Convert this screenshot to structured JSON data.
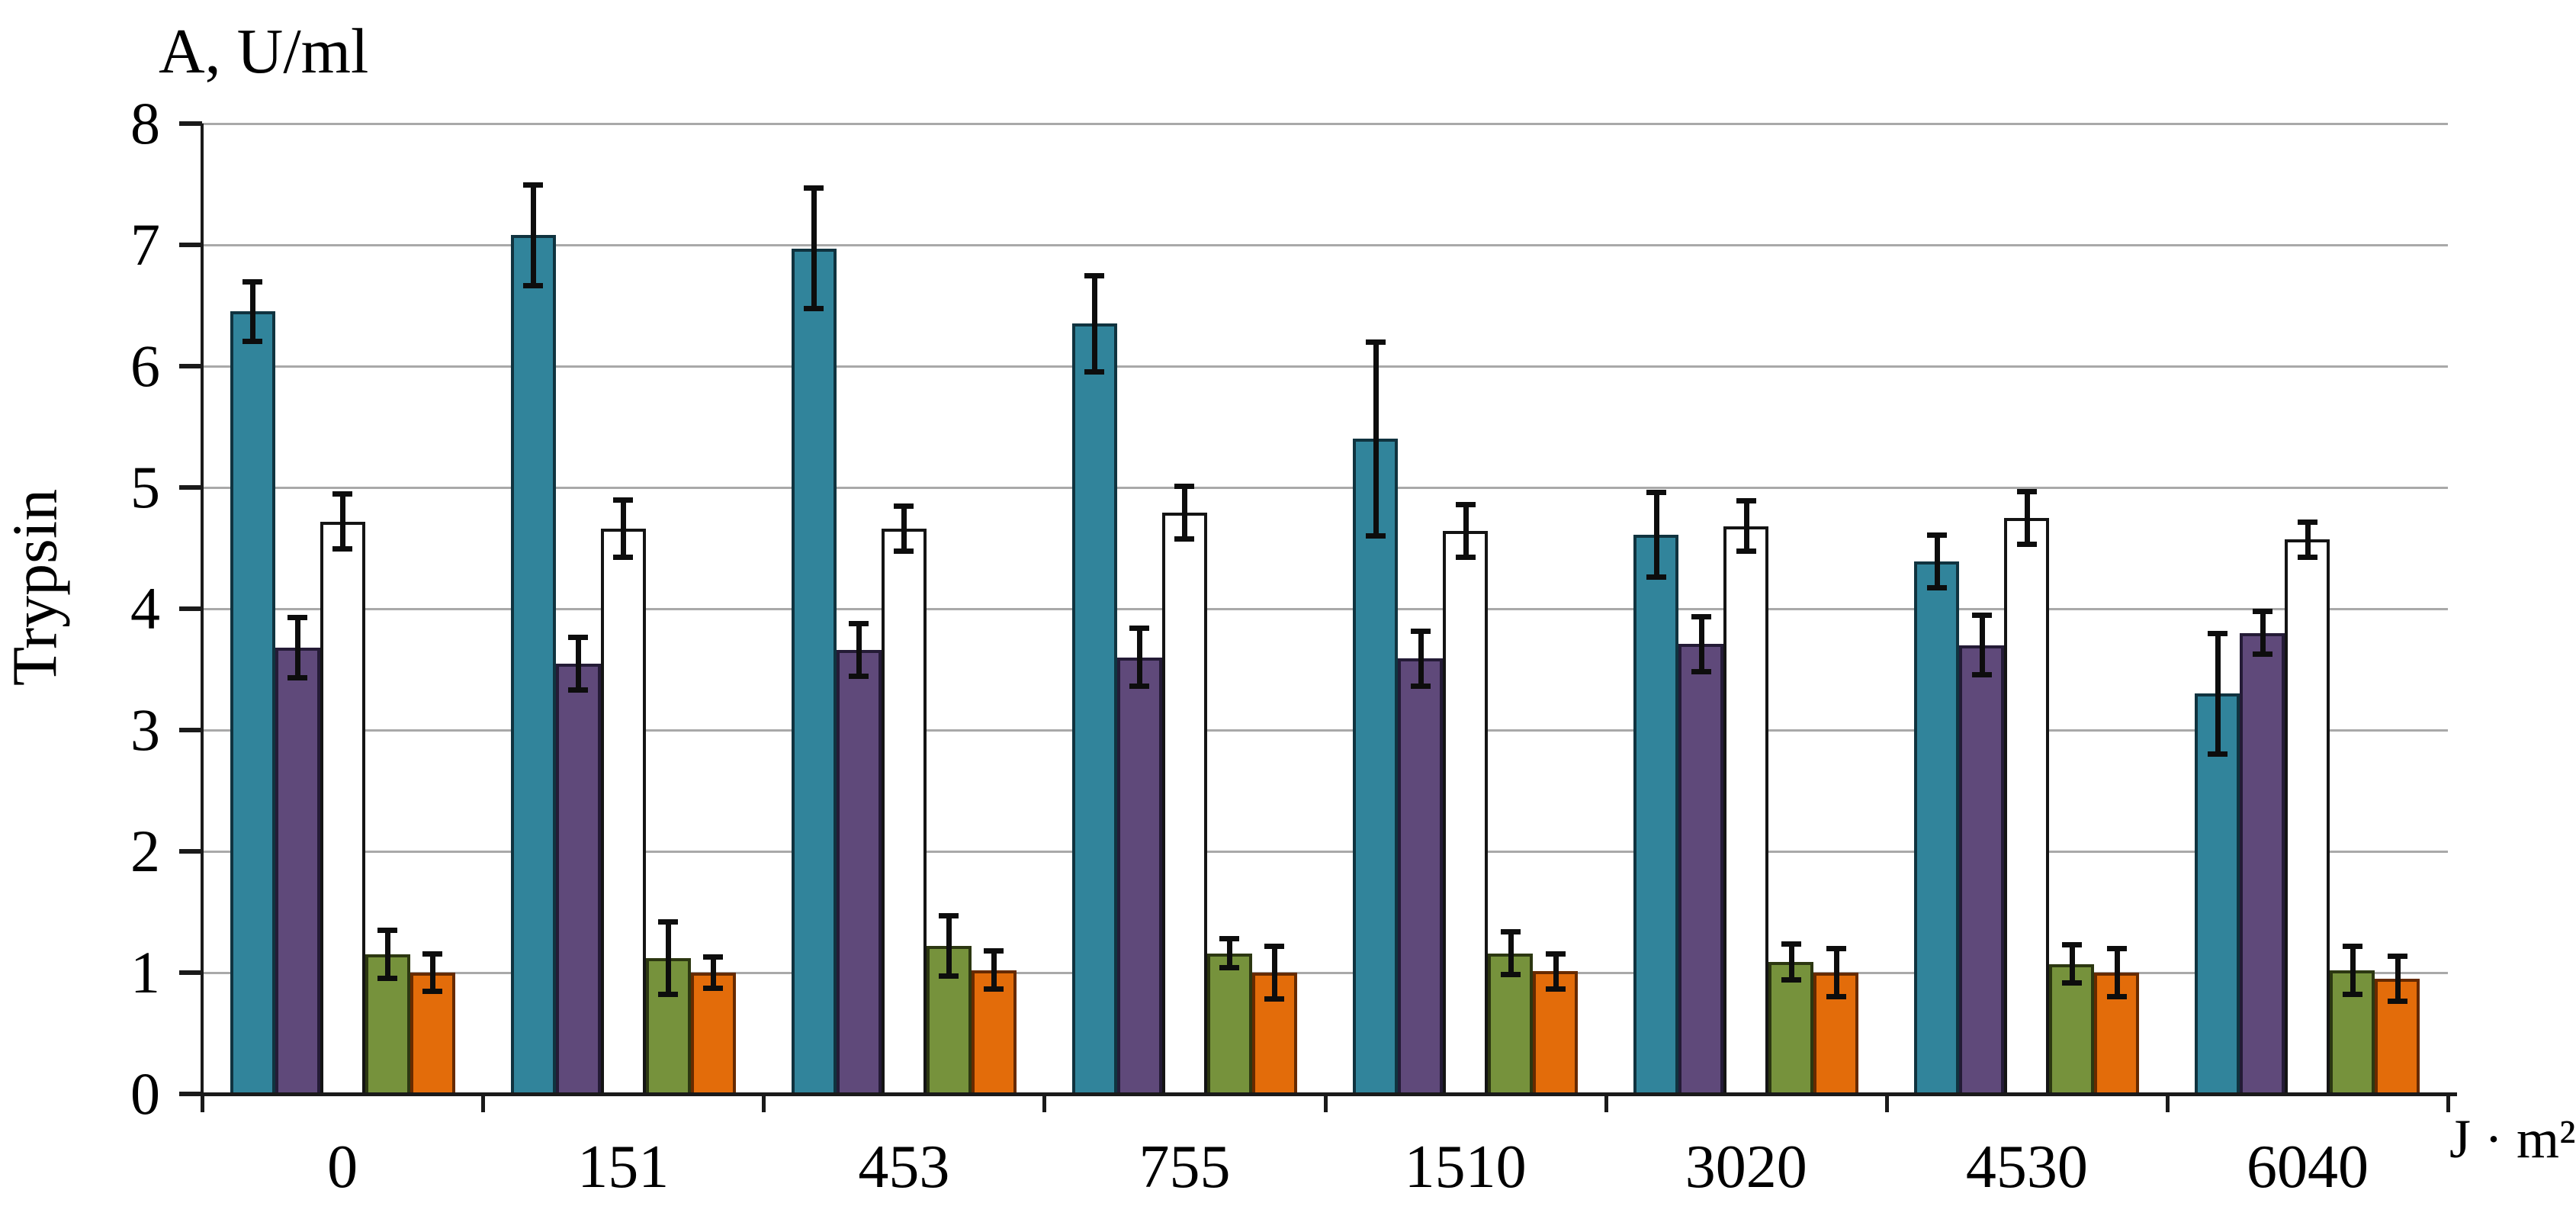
{
  "chart_data": {
    "type": "bar",
    "title": "A, U/ml",
    "ylabel": "Trypsin",
    "x_unit": "J · m²",
    "categories": [
      "0",
      "151",
      "453",
      "755",
      "1510",
      "3020",
      "4530",
      "6040"
    ],
    "ylim": [
      0,
      8
    ],
    "y_ticks": [
      0,
      1,
      2,
      3,
      4,
      5,
      6,
      7,
      8
    ],
    "grid": "horizontal",
    "legend": "none",
    "gridline_color": "#A9A9A9",
    "axis_color": "#1a1a1a",
    "error_bar_color": "#0d0d0d",
    "series": [
      {
        "name": "teal",
        "fill": "#31849B",
        "border": "#10333F",
        "values": [
          6.45,
          7.08,
          6.97,
          6.35,
          5.4,
          4.61,
          4.39,
          3.3
        ],
        "errors": [
          0.25,
          0.42,
          0.5,
          0.4,
          0.8,
          0.35,
          0.22,
          0.5
        ]
      },
      {
        "name": "purple",
        "fill": "#5F497A",
        "border": "#241B36",
        "values": [
          3.68,
          3.55,
          3.66,
          3.6,
          3.59,
          3.71,
          3.7,
          3.8
        ],
        "errors": [
          0.25,
          0.22,
          0.22,
          0.24,
          0.23,
          0.23,
          0.25,
          0.18
        ]
      },
      {
        "name": "white",
        "fill": "#FFFFFF",
        "border": "#141414",
        "values": [
          4.72,
          4.66,
          4.66,
          4.79,
          4.64,
          4.68,
          4.75,
          4.57
        ],
        "errors": [
          0.23,
          0.24,
          0.19,
          0.22,
          0.22,
          0.21,
          0.22,
          0.15
        ]
      },
      {
        "name": "green",
        "fill": "#76923C",
        "border": "#2C3711",
        "values": [
          1.15,
          1.12,
          1.22,
          1.16,
          1.16,
          1.09,
          1.07,
          1.02
        ],
        "errors": [
          0.2,
          0.3,
          0.25,
          0.12,
          0.18,
          0.15,
          0.16,
          0.2
        ]
      },
      {
        "name": "orange",
        "fill": "#E36C0A",
        "border": "#662A00",
        "values": [
          1.0,
          1.0,
          1.02,
          1.0,
          1.01,
          1.0,
          1.0,
          0.95
        ],
        "errors": [
          0.16,
          0.13,
          0.16,
          0.22,
          0.15,
          0.2,
          0.2,
          0.19
        ]
      }
    ]
  }
}
